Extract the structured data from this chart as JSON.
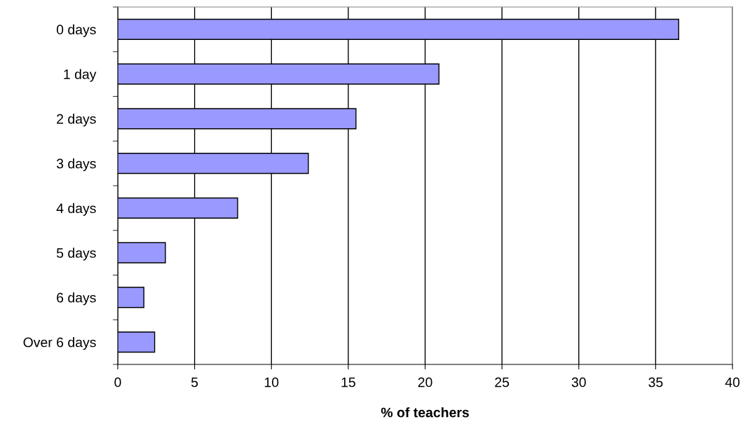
{
  "chart_data": {
    "type": "bar",
    "orientation": "horizontal",
    "xlabel": "% of teachers",
    "categories": [
      "0 days",
      "1 day",
      "2 days",
      "3 days",
      "4 days",
      "5 days",
      "6 days",
      "Over 6 days"
    ],
    "values": [
      36.5,
      20.9,
      15.5,
      12.4,
      7.8,
      3.1,
      1.7,
      2.4
    ],
    "color": "#9999ff",
    "xlim": [
      0,
      40
    ],
    "xticks": [
      0,
      5,
      10,
      15,
      20,
      25,
      30,
      35,
      40
    ],
    "grid": "x",
    "legend": false
  }
}
